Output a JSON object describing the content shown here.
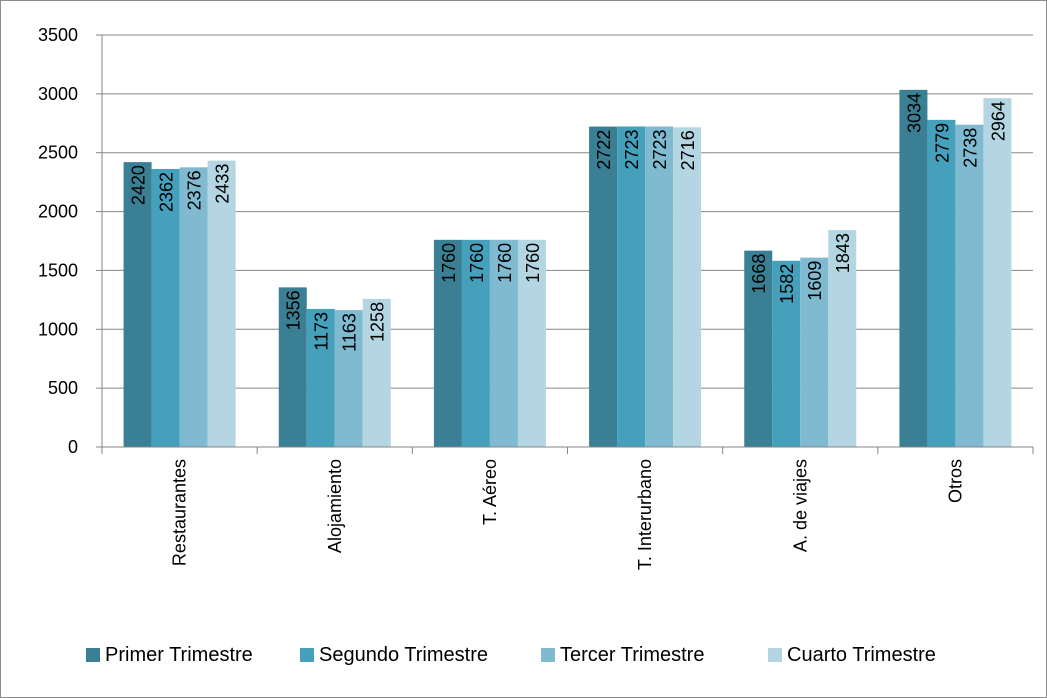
{
  "chart_data": {
    "type": "bar",
    "categories": [
      "Restaurantes",
      "Alojamiento",
      "T. Aéreo",
      "T. Interurbano",
      "A. de viajes",
      "Otros"
    ],
    "series": [
      {
        "name": "Primer Trimestre",
        "color": "#3a7f93",
        "values": [
          2420,
          1356,
          1760,
          2722,
          1668,
          3034
        ]
      },
      {
        "name": "Segundo Trimestre",
        "color": "#44a0bb",
        "values": [
          2362,
          1173,
          1760,
          2723,
          1582,
          2779
        ]
      },
      {
        "name": "Tercer Trimestre",
        "color": "#7fbad0",
        "values": [
          2376,
          1163,
          1760,
          2723,
          1609,
          2738
        ]
      },
      {
        "name": "Cuarto Trimestre",
        "color": "#b4d6e2",
        "values": [
          2433,
          1258,
          1760,
          2716,
          1843,
          2964
        ]
      }
    ],
    "title": "",
    "xlabel": "",
    "ylabel": "",
    "ylim": [
      0,
      3500
    ],
    "yticks": [
      0,
      500,
      1000,
      1500,
      2000,
      2500,
      3000,
      3500
    ],
    "grid": true,
    "legend_position": "bottom",
    "data_labels": true
  }
}
